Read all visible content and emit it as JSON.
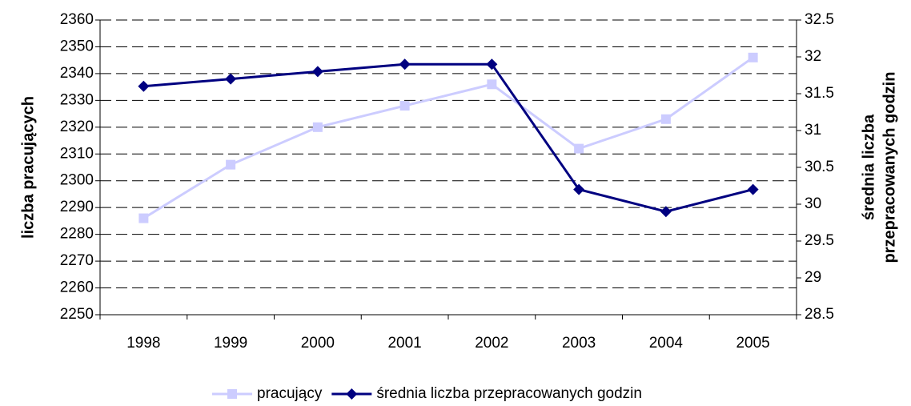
{
  "chart_data": {
    "type": "line",
    "y_label": "liczba pracujących",
    "y2_label": [
      "średnia liczba",
      "przepracowanych godzin"
    ],
    "categories": [
      "1998",
      "1999",
      "2000",
      "2001",
      "2002",
      "2003",
      "2004",
      "2005"
    ],
    "series": [
      {
        "name": "pracujący",
        "color": "#ccccff",
        "marker": "square",
        "values": [
          2286,
          2306,
          2320,
          2328,
          2336,
          2312,
          2323,
          2346
        ]
      },
      {
        "name": "średnia liczba przepracowanych godzin",
        "color": "#000080",
        "marker": "diamond",
        "axis": "y2",
        "values": [
          31.6,
          31.7,
          31.8,
          31.9,
          31.9,
          30.2,
          29.9,
          30.2
        ]
      }
    ],
    "ylim": [
      2250,
      2360
    ],
    "yticks": [
      2250,
      2260,
      2270,
      2280,
      2290,
      2300,
      2310,
      2320,
      2330,
      2340,
      2350,
      2360
    ],
    "y2lim": [
      28.5,
      32.5
    ],
    "y2ticks": [
      28.5,
      29,
      29.5,
      30,
      30.5,
      31,
      31.5,
      32,
      32.5
    ],
    "grid": true,
    "legend": "bottom"
  }
}
